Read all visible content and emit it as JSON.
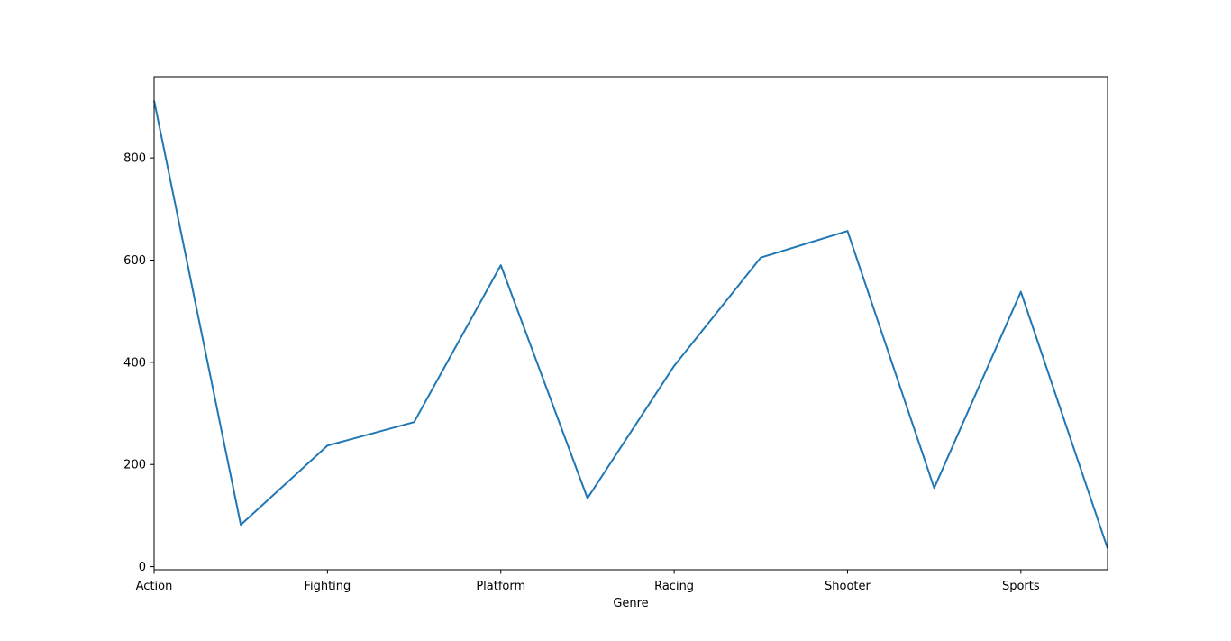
{
  "chart_data": {
    "type": "line",
    "title": "",
    "xlabel": "Genre",
    "ylabel": "",
    "x": [
      0,
      1,
      2,
      3,
      4,
      5,
      6,
      7,
      8,
      9,
      10,
      11
    ],
    "xtick_positions": [
      0,
      2,
      4,
      6,
      8,
      10
    ],
    "xtick_labels": [
      "Action",
      "Fighting",
      "Platform",
      "Racing",
      "Shooter",
      "Sports"
    ],
    "series": [
      {
        "values": [
          912,
          82,
          237,
          283,
          590,
          134,
          393,
          605,
          657,
          154,
          538,
          36
        ],
        "color": "#1f77b4"
      }
    ],
    "xlim": [
      0,
      11
    ],
    "ylim": [
      -6,
      959
    ],
    "yticks": [
      0,
      200,
      400,
      600,
      800
    ],
    "grid": false,
    "legend": "none"
  }
}
